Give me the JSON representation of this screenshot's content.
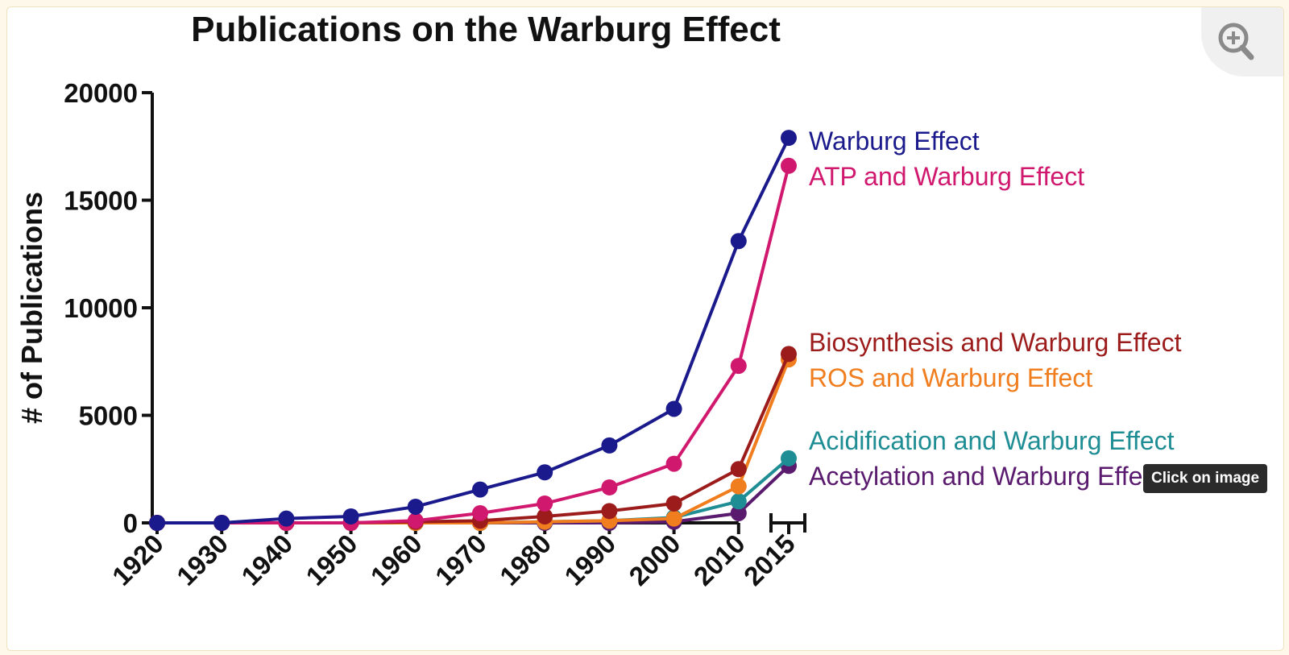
{
  "chart_data": {
    "type": "line",
    "title": "Publications on the Warburg Effect",
    "xlabel": "",
    "ylabel": "# of Publications",
    "ylim": [
      0,
      20000
    ],
    "yticks": [
      0,
      5000,
      10000,
      15000,
      20000
    ],
    "x_break_between": [
      "2010",
      "2015"
    ],
    "categories": [
      "1920",
      "1930",
      "1940",
      "1950",
      "1960",
      "1970",
      "1980",
      "1990",
      "2000",
      "2010",
      "2015"
    ],
    "series": [
      {
        "name": "Warburg Effect",
        "color": "#1a1a8c",
        "values": [
          0,
          0,
          200,
          300,
          750,
          1550,
          2350,
          3600,
          5300,
          13100,
          17900
        ]
      },
      {
        "name": "ATP and Warburg Effect",
        "color": "#d0186e",
        "values": [
          0,
          0,
          0,
          0,
          100,
          450,
          900,
          1650,
          2750,
          7300,
          16600
        ]
      },
      {
        "name": "Biosynthesis and Warburg Effect",
        "color": "#9c1c1c",
        "values": [
          0,
          0,
          0,
          0,
          50,
          100,
          300,
          550,
          900,
          2500,
          7850
        ]
      },
      {
        "name": "ROS and Warburg Effect",
        "color": "#f07d1e",
        "values": [
          0,
          0,
          0,
          0,
          0,
          0,
          50,
          100,
          200,
          1700,
          7600
        ]
      },
      {
        "name": "Acidification and Warburg Effect",
        "color": "#1f8d94",
        "values": [
          0,
          0,
          0,
          0,
          0,
          0,
          50,
          100,
          250,
          1000,
          3000
        ]
      },
      {
        "name": "Acetylation and Warburg Effect",
        "color": "#5a1a6e",
        "values": [
          0,
          0,
          0,
          0,
          0,
          0,
          0,
          0,
          50,
          450,
          2650
        ]
      }
    ],
    "legend_labels": [
      "Warburg Effect",
      "ATP and Warburg Effect",
      "Biosynthesis and Warburg Effect",
      "ROS and Warburg Effect",
      "Acidification and Warburg Effect",
      "Acetylation and Warburg Effect"
    ],
    "legend_placement": "right"
  },
  "ui": {
    "tooltip_text": "Click on image",
    "zoom_icon": "zoom-in-icon"
  }
}
